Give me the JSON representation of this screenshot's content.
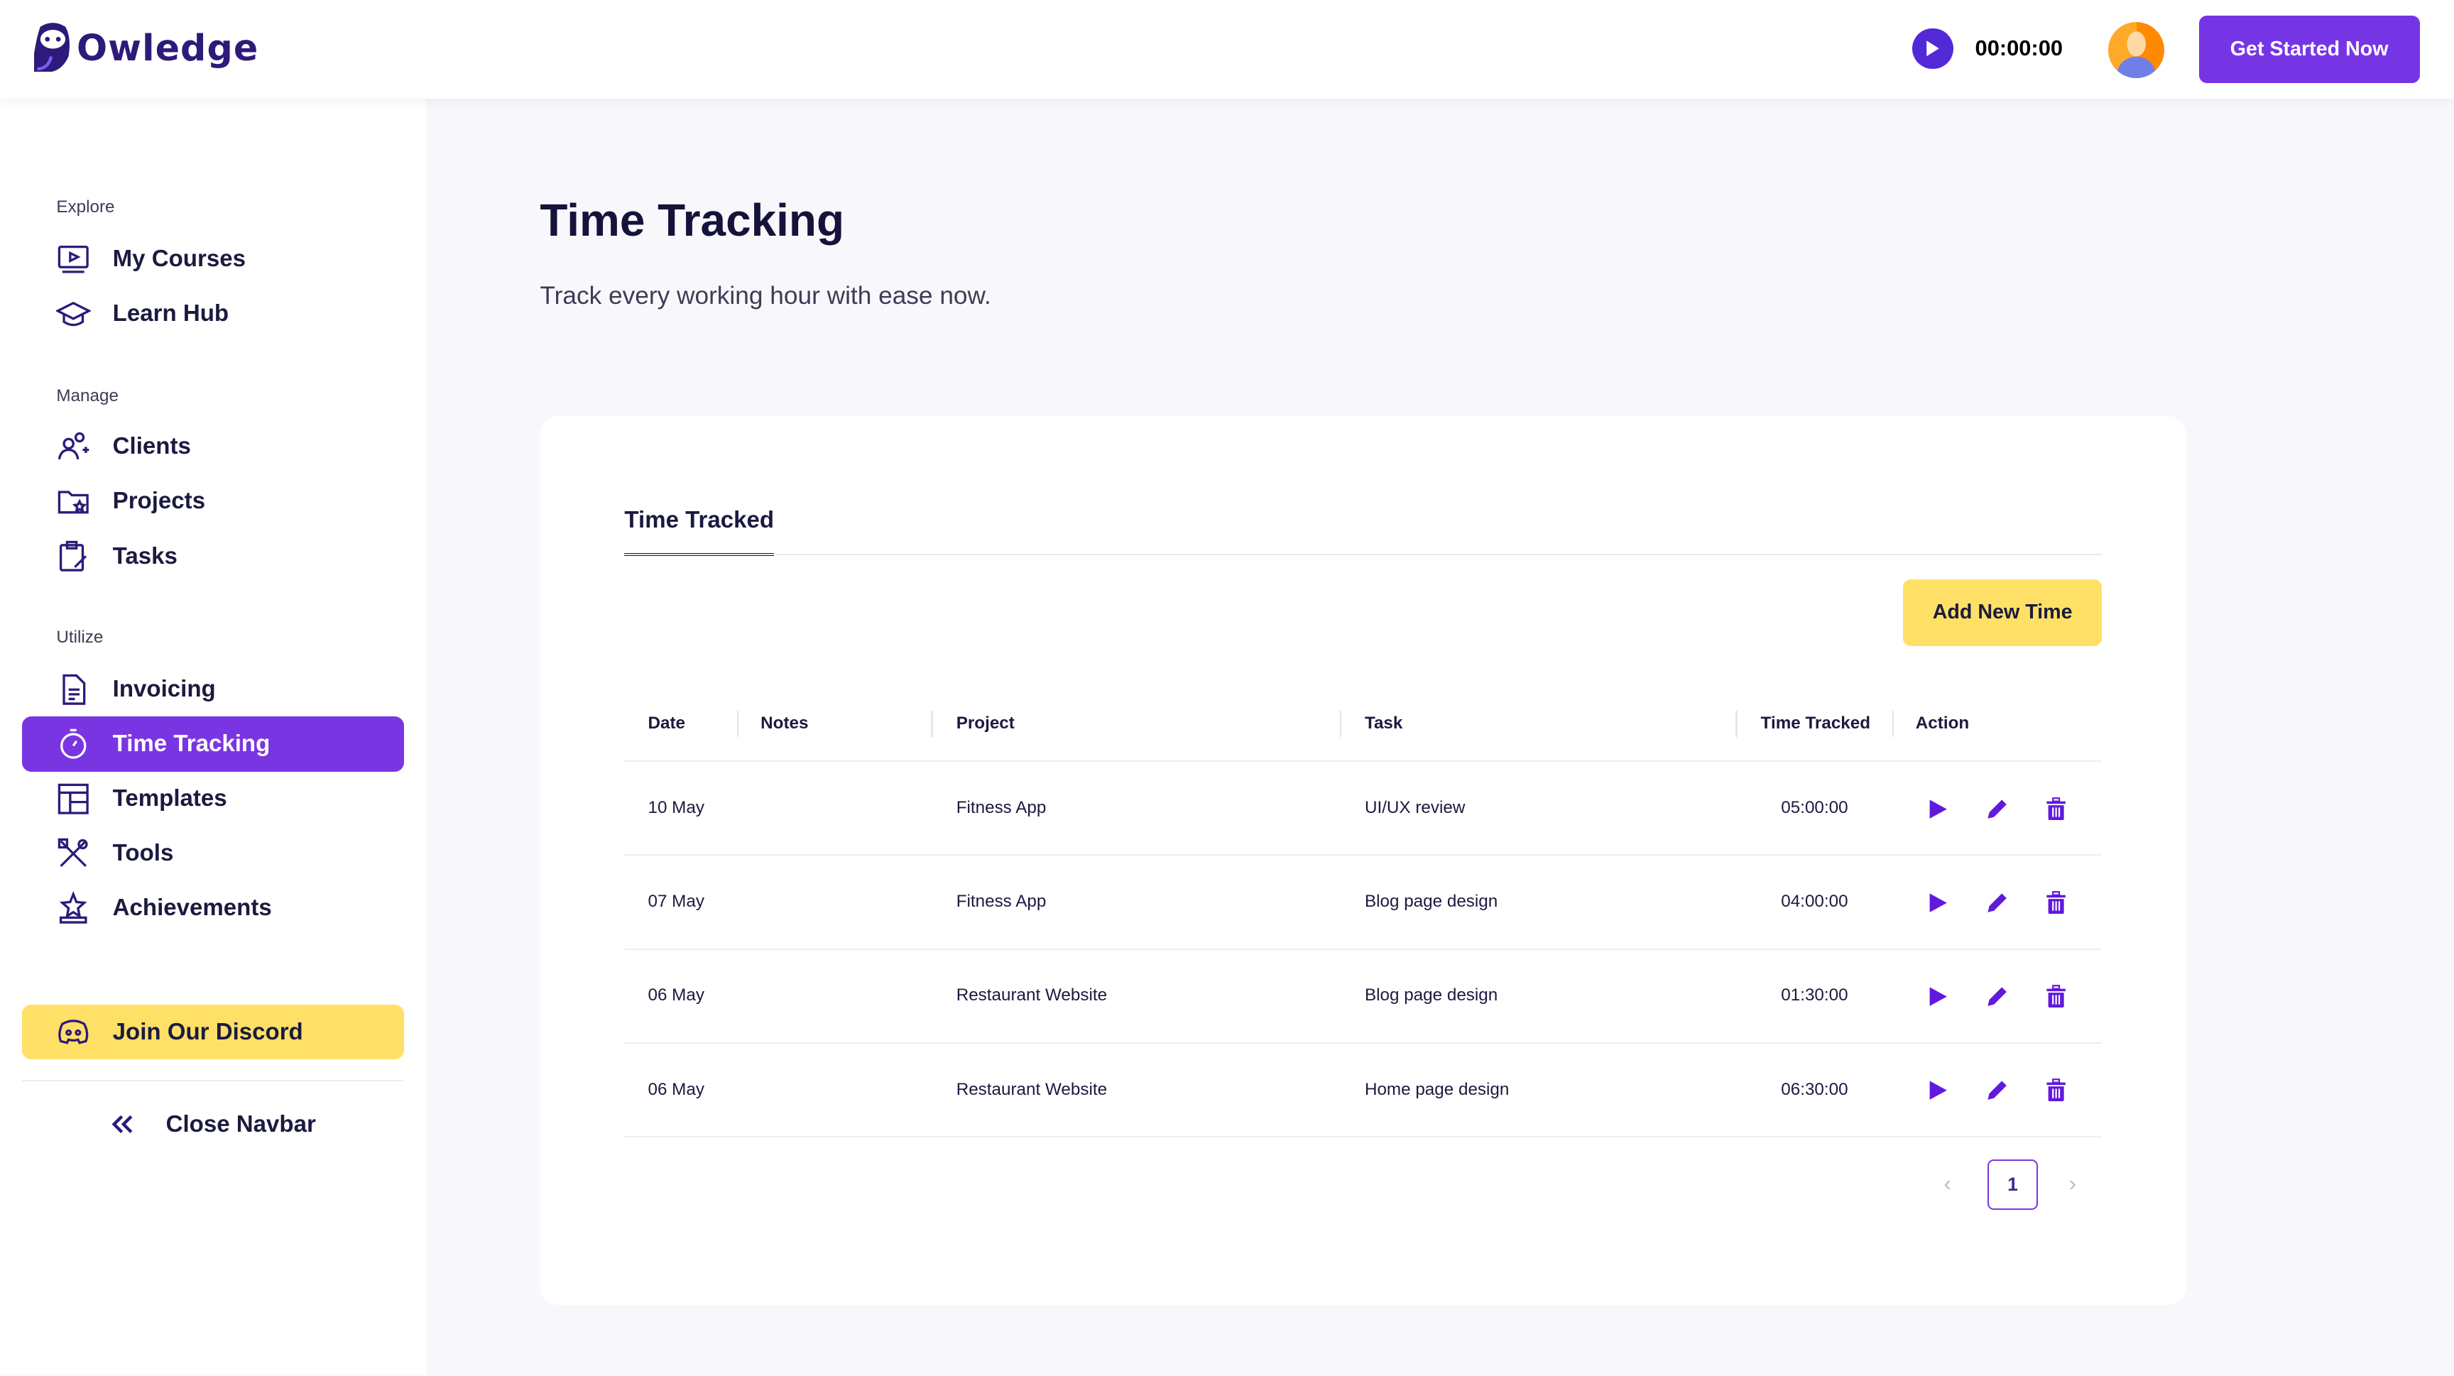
{
  "header": {
    "logo": "Owledge",
    "timer": "00:00:00",
    "cta": "Get Started Now"
  },
  "sidebar": {
    "sections": [
      "Explore",
      "Manage",
      "Utilize"
    ],
    "items": [
      {
        "label": "My Courses",
        "icon": "play-screen-icon"
      },
      {
        "label": "Learn Hub",
        "icon": "graduation-cap-icon"
      },
      {
        "label": "Clients",
        "icon": "users-icon"
      },
      {
        "label": "Projects",
        "icon": "folder-star-icon"
      },
      {
        "label": "Tasks",
        "icon": "clipboard-icon"
      },
      {
        "label": "Invoicing",
        "icon": "document-icon"
      },
      {
        "label": "Time Tracking",
        "icon": "stopwatch-icon",
        "active": true
      },
      {
        "label": "Templates",
        "icon": "layout-icon"
      },
      {
        "label": "Tools",
        "icon": "tools-icon"
      },
      {
        "label": "Achievements",
        "icon": "trophy-star-icon"
      }
    ],
    "discord": "Join Our Discord",
    "close": "Close Navbar"
  },
  "main": {
    "title": "Time Tracking",
    "subtitle": "Track every working hour with ease now.",
    "tab": "Time Tracked",
    "add_button": "Add New Time",
    "columns": [
      "Date",
      "Notes",
      "Project",
      "Task",
      "Time Tracked",
      "Action"
    ],
    "rows": [
      {
        "date": "10 May",
        "notes": "",
        "project": "Fitness App",
        "task": "UI/UX review",
        "time": "05:00:00"
      },
      {
        "date": "07 May",
        "notes": "",
        "project": "Fitness App",
        "task": "Blog page design",
        "time": "04:00:00"
      },
      {
        "date": "06 May",
        "notes": "",
        "project": "Restaurant Website",
        "task": "Blog page design",
        "time": "01:30:00"
      },
      {
        "date": "06 May",
        "notes": "",
        "project": "Restaurant Website",
        "task": "Home page design",
        "time": "06:30:00"
      }
    ],
    "page": "1"
  },
  "colors": {
    "accent": "#7635e5",
    "action": "#6119dd",
    "yellow": "#ffe066",
    "text": "#1b1a3f"
  }
}
